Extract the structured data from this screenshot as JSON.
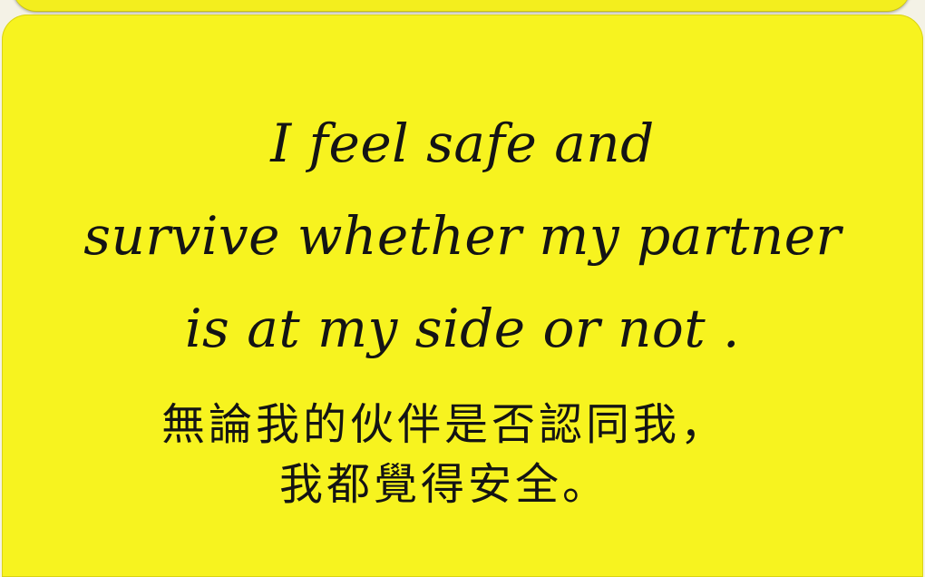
{
  "card": {
    "background_color": "#f7f31f",
    "text_color": "#141414",
    "english_lines": [
      "I feel safe and",
      "survive whether my partner",
      "is at my side or not ."
    ],
    "chinese_lines": [
      "無論我的伙伴是否認同我，",
      "我都覺得安全。"
    ]
  }
}
